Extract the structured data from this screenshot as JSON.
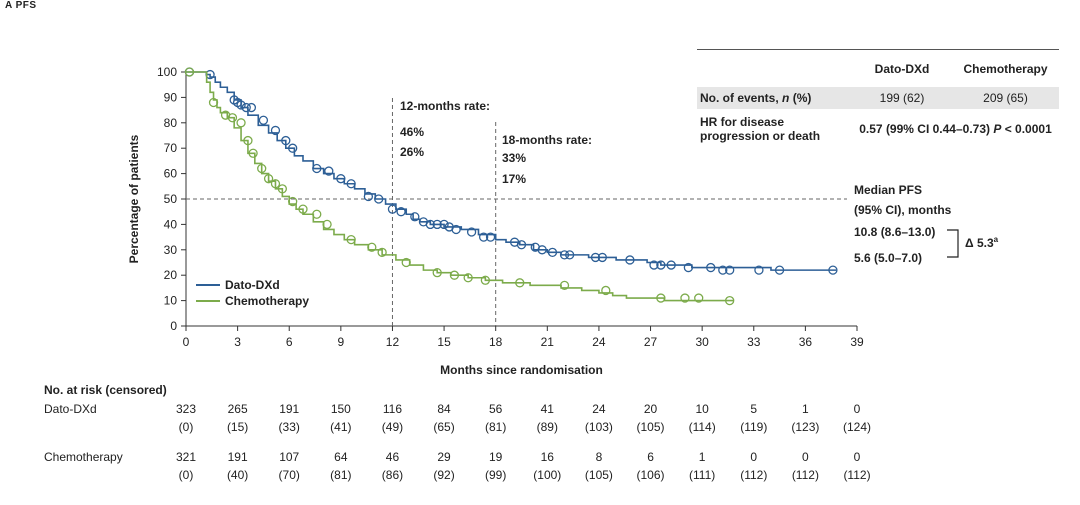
{
  "panel_label": "A   PFS",
  "colors": {
    "dato": "#2d5f96",
    "chemo": "#7cab4b",
    "grid": "#666666"
  },
  "chart_data": {
    "type": "line",
    "title": "",
    "xlabel": "Months since randomisation",
    "ylabel": "Percentage of patients",
    "xlim": [
      0,
      39
    ],
    "ylim": [
      0,
      100
    ],
    "xticks": [
      0,
      3,
      6,
      9,
      12,
      15,
      18,
      21,
      24,
      27,
      30,
      33,
      36,
      39
    ],
    "yticks": [
      0,
      10,
      20,
      30,
      40,
      50,
      60,
      70,
      80,
      90,
      100
    ],
    "legend_position": "bottom-left",
    "series": [
      {
        "name": "Dato-DXd",
        "color": "#2d5f96",
        "x": [
          0,
          1.2,
          1.4,
          1.7,
          2.0,
          2.4,
          2.8,
          3.2,
          3.6,
          4.2,
          4.8,
          5.3,
          5.8,
          6.3,
          6.8,
          7.4,
          8.0,
          8.6,
          9.2,
          9.8,
          10.4,
          11.0,
          11.6,
          12.2,
          12.8,
          13.2,
          13.6,
          14.2,
          15.0,
          16.0,
          17.0,
          18.0,
          18.6,
          19.4,
          20.2,
          21.0,
          21.8,
          22.6,
          23.4,
          24.2,
          25.0,
          26.0,
          26.8,
          27.6,
          28.4,
          29.4,
          30.4,
          31.6,
          32.8,
          34.0,
          35.2,
          36.4,
          37.6,
          37.8
        ],
        "y": [
          100,
          99,
          98,
          96,
          94,
          92,
          89,
          86,
          83,
          79,
          76,
          73,
          70,
          67,
          65,
          62,
          60,
          58,
          56,
          54,
          52,
          50,
          48,
          46,
          44,
          42,
          41,
          40,
          39,
          38,
          36,
          34,
          33,
          32,
          30,
          29,
          28,
          28,
          27,
          27,
          26,
          26,
          25,
          24,
          24,
          23,
          23,
          23,
          23,
          22,
          22,
          22,
          22,
          22
        ],
        "censor_x": [
          0.2,
          1.4,
          2.8,
          3.0,
          3.2,
          3.5,
          3.8,
          4.5,
          5.2,
          5.8,
          6.2,
          7.6,
          8.3,
          9.0,
          9.6,
          10.6,
          11.2,
          12.0,
          12.5,
          13.3,
          13.8,
          14.2,
          14.6,
          15.0,
          15.3,
          15.7,
          16.6,
          17.3,
          17.7,
          19.1,
          19.5,
          20.3,
          20.7,
          21.3,
          22.0,
          22.3,
          23.8,
          24.2,
          25.8,
          27.2,
          27.6,
          28.2,
          29.2,
          30.5,
          31.2,
          31.6,
          33.3,
          34.5,
          37.6
        ],
        "censor_y": [
          100,
          99,
          89,
          88,
          87,
          86,
          86,
          81,
          77,
          73,
          70,
          62,
          61,
          58,
          56,
          51,
          50,
          46,
          45,
          43,
          41,
          40,
          40,
          40,
          39,
          38,
          37,
          35,
          35,
          33,
          32,
          31,
          30,
          29,
          28,
          28,
          27,
          27,
          26,
          24,
          24,
          24,
          23,
          23,
          22,
          22,
          22,
          22,
          22
        ],
        "median": "10.8 (8.6–13.0)"
      },
      {
        "name": "Chemotherapy",
        "color": "#7cab4b",
        "x": [
          0,
          1.2,
          1.4,
          1.6,
          1.8,
          2.0,
          2.4,
          2.8,
          3.2,
          3.6,
          4.0,
          4.4,
          4.8,
          5.2,
          5.6,
          6.0,
          6.4,
          6.8,
          7.4,
          8.0,
          8.6,
          9.2,
          9.8,
          10.6,
          11.4,
          12.2,
          13.0,
          13.8,
          14.6,
          15.4,
          16.4,
          17.4,
          18.4,
          20.0,
          21.8,
          23.0,
          24.0,
          24.8,
          25.6,
          26.6,
          27.8,
          29.0,
          30.0,
          31.6,
          31.8
        ],
        "y": [
          100,
          96,
          92,
          89,
          86,
          84,
          82,
          78,
          73,
          68,
          64,
          60,
          57,
          54,
          51,
          48,
          46,
          44,
          41,
          38,
          36,
          34,
          32,
          30,
          28,
          26,
          24,
          22,
          21,
          20,
          19,
          18,
          17,
          16,
          15,
          14,
          13,
          12,
          11,
          11,
          10,
          10,
          10,
          10,
          10
        ],
        "censor_x": [
          0.2,
          1.6,
          2.3,
          2.7,
          3.2,
          3.6,
          3.9,
          4.4,
          4.8,
          5.2,
          5.6,
          6.2,
          6.8,
          7.6,
          8.2,
          9.6,
          10.8,
          11.4,
          12.8,
          14.6,
          15.6,
          16.4,
          17.4,
          19.4,
          22.0,
          24.4,
          27.6,
          29.0,
          29.8,
          31.6
        ],
        "censor_y": [
          100,
          88,
          83,
          82,
          80,
          73,
          68,
          62,
          58,
          56,
          54,
          49,
          46,
          44,
          40,
          34,
          31,
          29,
          25,
          21,
          20,
          19,
          18,
          17,
          16,
          14,
          11,
          11,
          11,
          10
        ],
        "median": "5.6 (5.0–7.0)"
      }
    ],
    "reference_lines": {
      "median_level": 50,
      "month_12": 12,
      "month_18": 18
    },
    "annotations": {
      "rate12_title": "12-months rate:",
      "rate12_dato": "46%",
      "rate12_chemo": "26%",
      "rate18_title": "18-months rate:",
      "rate18_dato": "33%",
      "rate18_chemo": "17%",
      "median_title_1": "Median PFS",
      "median_title_2": "(95% CI), months",
      "delta_label": "Δ 5.3",
      "delta_sup": "a"
    }
  },
  "summary_table": {
    "col_dato": "Dato-DXd",
    "col_chemo": "Chemotherapy",
    "events_label": "No. of events, ",
    "events_label_n": "n",
    "events_label_tail": " (%)",
    "events_dato": "199 (62)",
    "events_chemo": "209 (65)",
    "hr_label_1": "HR for disease",
    "hr_label_2": "progression or death",
    "hr_value": "0.57 (99% CI 0.44–0.73) ",
    "hr_p": "P",
    "hr_p_tail": " < 0.0001"
  },
  "risk_table": {
    "title": "No. at risk (censored)",
    "months": [
      0,
      3,
      6,
      9,
      12,
      15,
      18,
      21,
      24,
      27,
      30,
      33,
      36,
      39
    ],
    "arms": [
      {
        "name": "Dato-DXd",
        "at_risk": [
          "323",
          "265",
          "191",
          "150",
          "116",
          "84",
          "56",
          "41",
          "24",
          "20",
          "10",
          "5",
          "1",
          "0"
        ],
        "censored": [
          "(0)",
          "(15)",
          "(33)",
          "(41)",
          "(49)",
          "(65)",
          "(81)",
          "(89)",
          "(103)",
          "(105)",
          "(114)",
          "(119)",
          "(123)",
          "(124)"
        ]
      },
      {
        "name": "Chemotherapy",
        "at_risk": [
          "321",
          "191",
          "107",
          "64",
          "46",
          "29",
          "19",
          "16",
          "8",
          "6",
          "1",
          "0",
          "0",
          "0"
        ],
        "censored": [
          "(0)",
          "(40)",
          "(70)",
          "(81)",
          "(86)",
          "(92)",
          "(99)",
          "(100)",
          "(105)",
          "(106)",
          "(111)",
          "(112)",
          "(112)",
          "(112)"
        ]
      }
    ]
  }
}
